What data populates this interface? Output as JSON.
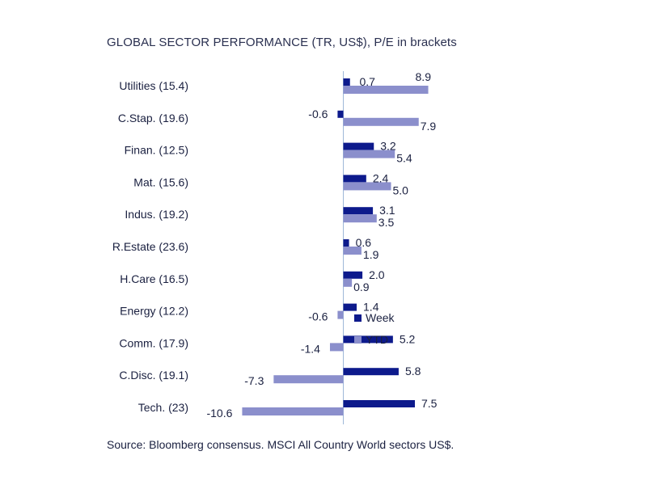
{
  "chart_data": {
    "type": "bar",
    "orientation": "horizontal",
    "title": "GLOBAL SECTOR PERFORMANCE (TR, US$), P/E in brackets",
    "source": "Source: Bloomberg consensus. MSCI All Country World sectors US$.",
    "categories": [
      "Utilities (15.4)",
      "C.Stap. (19.6)",
      "Finan. (12.5)",
      "Mat. (15.6)",
      "Indus. (19.2)",
      "R.Estate (23.6)",
      "H.Care (16.5)",
      "Energy (12.2)",
      "Comm. (17.9)",
      "C.Disc. (19.1)",
      "Tech. (23)"
    ],
    "series": [
      {
        "name": "Week",
        "color": "#0d1a8c",
        "values": [
          0.7,
          -0.6,
          3.2,
          2.4,
          3.1,
          0.6,
          2.0,
          1.4,
          5.2,
          5.8,
          7.5
        ]
      },
      {
        "name": "YTD",
        "color": "#8b8fcc",
        "values": [
          8.9,
          7.9,
          5.4,
          5.0,
          3.5,
          1.9,
          0.9,
          -0.6,
          -1.4,
          -7.3,
          -10.6
        ]
      }
    ],
    "value_labels": {
      "Week": [
        "0.7",
        "-0.6",
        "3.2",
        "2.4",
        "3.1",
        "0.6",
        "2.0",
        "1.4",
        "5.2",
        "5.8",
        "7.5"
      ],
      "YTD": [
        "8.9",
        "7.9",
        "5.4",
        "5.0",
        "3.5",
        "1.9",
        "0.9",
        "-0.6",
        "-1.4",
        "-7.3",
        "-10.6"
      ]
    },
    "legend": {
      "entries": [
        "Week",
        "YTD"
      ],
      "placement": "center"
    },
    "xlim": [
      -10.6,
      8.9
    ],
    "grid": false
  }
}
